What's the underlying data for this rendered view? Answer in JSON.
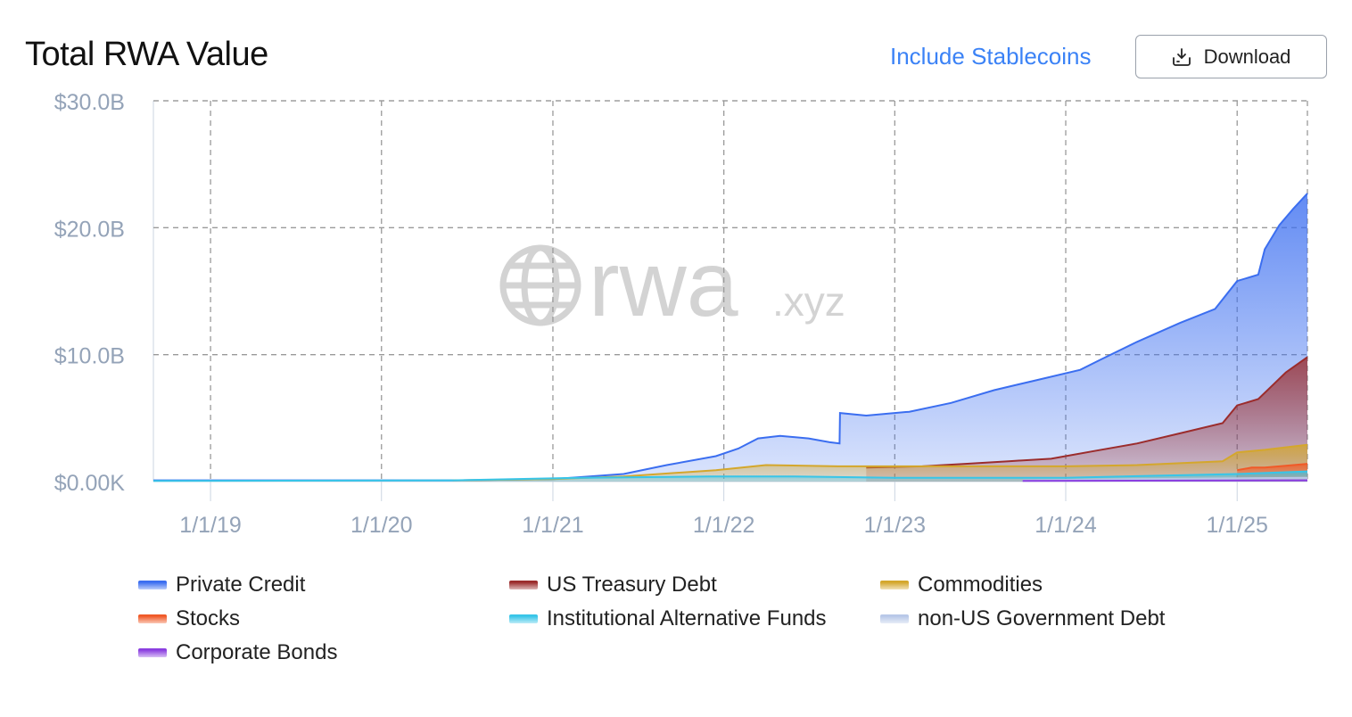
{
  "header": {
    "title": "Total RWA Value",
    "stablecoins_label": "Include Stablecoins",
    "download_label": "Download",
    "download_icon": "download-icon"
  },
  "watermark": {
    "main": "rwa",
    "suffix": ".xyz",
    "icon": "globe-icon"
  },
  "colors": {
    "accent": "#3b82f6",
    "grid": "#9a9a9a",
    "axis_text": "#94a3b8"
  },
  "chart_data": {
    "type": "area",
    "title": "Total RWA Value",
    "xlabel": "",
    "ylabel": "",
    "grid": true,
    "legend_position": "bottom",
    "x_axis": {
      "type": "date",
      "range": [
        "2018-09-01",
        "2025-05-31"
      ],
      "ticks": [
        {
          "date": "2019-01-01",
          "label": "1/1/19"
        },
        {
          "date": "2020-01-01",
          "label": "1/1/20"
        },
        {
          "date": "2021-01-01",
          "label": "1/1/21"
        },
        {
          "date": "2022-01-01",
          "label": "1/1/22"
        },
        {
          "date": "2023-01-01",
          "label": "1/1/23"
        },
        {
          "date": "2024-01-01",
          "label": "1/1/24"
        },
        {
          "date": "2025-01-01",
          "label": "1/1/25"
        }
      ]
    },
    "y_axis": {
      "range": [
        0,
        30
      ],
      "unit": "billion USD",
      "ticks": [
        {
          "value": 0,
          "label": "$0.00K"
        },
        {
          "value": 10,
          "label": "$10.0B"
        },
        {
          "value": 20,
          "label": "$20.0B"
        },
        {
          "value": 30,
          "label": "$30.0B"
        }
      ]
    },
    "series": [
      {
        "name": "Private Credit",
        "color": "#3b6ef0",
        "points": [
          [
            "2018-09-01",
            0.1
          ],
          [
            "2020-06-01",
            0.1
          ],
          [
            "2021-01-01",
            0.2
          ],
          [
            "2021-06-01",
            0.6
          ],
          [
            "2021-09-01",
            1.3
          ],
          [
            "2021-12-15",
            2.0
          ],
          [
            "2022-02-01",
            2.6
          ],
          [
            "2022-03-15",
            3.4
          ],
          [
            "2022-05-01",
            3.6
          ],
          [
            "2022-07-01",
            3.4
          ],
          [
            "2022-08-15",
            3.1
          ],
          [
            "2022-09-05",
            3.0
          ],
          [
            "2022-09-06",
            5.4
          ],
          [
            "2022-11-01",
            5.2
          ],
          [
            "2023-02-01",
            5.5
          ],
          [
            "2023-05-01",
            6.2
          ],
          [
            "2023-08-01",
            7.2
          ],
          [
            "2023-11-01",
            8.0
          ],
          [
            "2024-02-01",
            8.8
          ],
          [
            "2024-03-15",
            9.6
          ],
          [
            "2024-06-01",
            11.0
          ],
          [
            "2024-09-01",
            12.5
          ],
          [
            "2024-11-15",
            13.6
          ],
          [
            "2025-01-01",
            15.8
          ],
          [
            "2025-02-15",
            16.3
          ],
          [
            "2025-03-01",
            18.3
          ],
          [
            "2025-04-01",
            20.2
          ],
          [
            "2025-05-01",
            21.5
          ],
          [
            "2025-05-31",
            22.7
          ]
        ]
      },
      {
        "name": "US Treasury Debt",
        "color": "#9b2c2c",
        "points": [
          [
            "2022-11-01",
            1.1
          ],
          [
            "2023-03-01",
            1.2
          ],
          [
            "2023-06-01",
            1.4
          ],
          [
            "2023-09-01",
            1.6
          ],
          [
            "2023-12-01",
            1.8
          ],
          [
            "2024-03-01",
            2.4
          ],
          [
            "2024-06-01",
            3.0
          ],
          [
            "2024-09-01",
            3.8
          ],
          [
            "2024-12-01",
            4.6
          ],
          [
            "2025-01-01",
            6.0
          ],
          [
            "2025-02-15",
            6.5
          ],
          [
            "2025-03-15",
            7.5
          ],
          [
            "2025-04-15",
            8.6
          ],
          [
            "2025-05-31",
            9.8
          ]
        ]
      },
      {
        "name": "Commodities",
        "color": "#d4a72c",
        "points": [
          [
            "2020-06-01",
            0.1
          ],
          [
            "2021-01-01",
            0.2
          ],
          [
            "2021-06-01",
            0.4
          ],
          [
            "2021-12-15",
            0.9
          ],
          [
            "2022-04-01",
            1.3
          ],
          [
            "2022-09-01",
            1.2
          ],
          [
            "2023-01-01",
            1.2
          ],
          [
            "2023-06-01",
            1.2
          ],
          [
            "2024-01-01",
            1.2
          ],
          [
            "2024-06-01",
            1.3
          ],
          [
            "2024-12-01",
            1.6
          ],
          [
            "2025-01-01",
            2.3
          ],
          [
            "2025-03-01",
            2.5
          ],
          [
            "2025-05-31",
            2.9
          ]
        ]
      },
      {
        "name": "Stocks",
        "color": "#f05a28",
        "points": [
          [
            "2025-01-01",
            0.9
          ],
          [
            "2025-02-01",
            1.1
          ],
          [
            "2025-03-01",
            1.1
          ],
          [
            "2025-04-01",
            1.2
          ],
          [
            "2025-05-31",
            1.4
          ]
        ]
      },
      {
        "name": "Institutional Alternative Funds",
        "color": "#38c5e8",
        "points": [
          [
            "2018-09-01",
            0.05
          ],
          [
            "2020-06-01",
            0.1
          ],
          [
            "2021-03-01",
            0.3
          ],
          [
            "2021-12-01",
            0.4
          ],
          [
            "2022-06-01",
            0.4
          ],
          [
            "2023-01-01",
            0.3
          ],
          [
            "2024-01-01",
            0.3
          ],
          [
            "2024-09-01",
            0.5
          ],
          [
            "2025-01-01",
            0.6
          ],
          [
            "2025-05-31",
            0.8
          ]
        ]
      },
      {
        "name": "non-US Government Debt",
        "color": "#b8c8e8",
        "points": [
          [
            "2023-10-01",
            0.1
          ],
          [
            "2024-06-01",
            0.2
          ],
          [
            "2025-05-31",
            0.3
          ]
        ]
      },
      {
        "name": "Corporate Bonds",
        "color": "#8b3fe0",
        "points": [
          [
            "2023-10-01",
            0.05
          ],
          [
            "2025-05-31",
            0.1
          ]
        ]
      }
    ]
  }
}
